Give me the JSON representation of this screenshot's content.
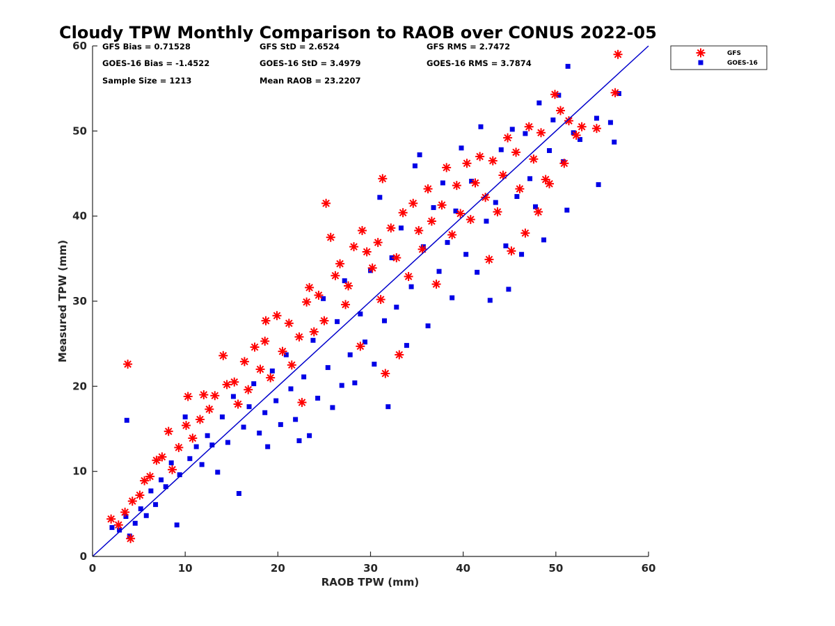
{
  "colors": {
    "gfs": "#ff0000",
    "goes16": "#0000e6",
    "line": "#0000cc",
    "axis": "#262626"
  },
  "chart_data": {
    "type": "scatter",
    "title": "Cloudy TPW Monthly Comparison to RAOB over CONUS 2022-05",
    "xlabel": "RAOB TPW (mm)",
    "ylabel": "Measured TPW (mm)",
    "xlim": [
      0,
      60
    ],
    "ylim": [
      0,
      60
    ],
    "xticks": [
      "0",
      "10",
      "20",
      "30",
      "40",
      "50",
      "60"
    ],
    "yticks": [
      "0",
      "10",
      "20",
      "30",
      "40",
      "50",
      "60"
    ],
    "grid": false,
    "legend_position": "outside-top-right",
    "stats": [
      {
        "id": "gfs-bias",
        "text": "GFS Bias = 0.71528"
      },
      {
        "id": "gfs-std",
        "text": "GFS StD = 2.6524"
      },
      {
        "id": "gfs-rms",
        "text": "GFS RMS = 2.7472"
      },
      {
        "id": "goes-bias",
        "text": "GOES-16 Bias = -1.4522"
      },
      {
        "id": "goes-std",
        "text": "GOES-16 StD = 3.4979"
      },
      {
        "id": "goes-rms",
        "text": "GOES-16 RMS = 3.7874"
      },
      {
        "id": "sample-size",
        "text": "Sample Size = 1213"
      },
      {
        "id": "mean-raob",
        "text": "Mean RAOB = 23.2207"
      }
    ],
    "reference_line": {
      "from": [
        0,
        0
      ],
      "to": [
        60,
        60
      ]
    },
    "series": [
      {
        "name": "GFS",
        "marker": "asterisk",
        "points": [
          [
            2,
            4.4
          ],
          [
            2.8,
            3.7
          ],
          [
            3.5,
            5.2
          ],
          [
            3.8,
            22.6
          ],
          [
            4.1,
            2.1
          ],
          [
            4.3,
            6.5
          ],
          [
            5.1,
            7.2
          ],
          [
            5.6,
            8.9
          ],
          [
            6.2,
            9.4
          ],
          [
            6.9,
            11.3
          ],
          [
            7.5,
            11.7
          ],
          [
            8.2,
            14.7
          ],
          [
            8.6,
            10.2
          ],
          [
            9.3,
            12.8
          ],
          [
            10.1,
            15.4
          ],
          [
            10.3,
            18.8
          ],
          [
            10.8,
            13.9
          ],
          [
            11.6,
            16.1
          ],
          [
            12.0,
            19.0
          ],
          [
            12.6,
            17.3
          ],
          [
            13.2,
            18.9
          ],
          [
            14.1,
            23.6
          ],
          [
            14.5,
            20.2
          ],
          [
            15.3,
            20.5
          ],
          [
            15.7,
            17.9
          ],
          [
            16.4,
            22.9
          ],
          [
            16.8,
            19.6
          ],
          [
            17.5,
            24.6
          ],
          [
            18.1,
            22.0
          ],
          [
            18.6,
            25.3
          ],
          [
            18.7,
            27.7
          ],
          [
            19.2,
            21.0
          ],
          [
            19.9,
            28.3
          ],
          [
            20.5,
            24.1
          ],
          [
            21.2,
            27.4
          ],
          [
            21.5,
            22.5
          ],
          [
            22.3,
            25.8
          ],
          [
            22.6,
            18.1
          ],
          [
            23.1,
            29.9
          ],
          [
            23.4,
            31.6
          ],
          [
            23.9,
            26.4
          ],
          [
            24.4,
            30.7
          ],
          [
            25.0,
            27.7
          ],
          [
            25.2,
            41.5
          ],
          [
            25.7,
            37.5
          ],
          [
            26.2,
            33.0
          ],
          [
            26.7,
            34.4
          ],
          [
            27.3,
            29.6
          ],
          [
            27.6,
            31.8
          ],
          [
            28.2,
            36.4
          ],
          [
            28.9,
            24.7
          ],
          [
            29.1,
            38.3
          ],
          [
            29.6,
            35.8
          ],
          [
            30.2,
            33.9
          ],
          [
            30.8,
            36.9
          ],
          [
            31.1,
            30.2
          ],
          [
            31.3,
            44.4
          ],
          [
            31.6,
            21.5
          ],
          [
            32.2,
            38.6
          ],
          [
            32.8,
            35.1
          ],
          [
            33.1,
            23.7
          ],
          [
            33.5,
            40.4
          ],
          [
            34.1,
            32.9
          ],
          [
            34.6,
            41.5
          ],
          [
            35.2,
            38.3
          ],
          [
            35.6,
            36.1
          ],
          [
            36.2,
            43.2
          ],
          [
            36.6,
            39.4
          ],
          [
            37.1,
            32.0
          ],
          [
            37.7,
            41.3
          ],
          [
            38.2,
            45.7
          ],
          [
            38.8,
            37.8
          ],
          [
            39.3,
            43.6
          ],
          [
            39.7,
            40.3
          ],
          [
            40.4,
            46.2
          ],
          [
            40.8,
            39.6
          ],
          [
            41.3,
            43.9
          ],
          [
            41.8,
            47.0
          ],
          [
            42.4,
            42.2
          ],
          [
            42.8,
            34.9
          ],
          [
            43.2,
            46.5
          ],
          [
            43.7,
            40.5
          ],
          [
            44.3,
            44.8
          ],
          [
            44.8,
            49.2
          ],
          [
            45.2,
            35.9
          ],
          [
            45.7,
            47.5
          ],
          [
            46.1,
            43.2
          ],
          [
            46.7,
            38.0
          ],
          [
            47.1,
            50.5
          ],
          [
            47.6,
            46.7
          ],
          [
            48.1,
            40.5
          ],
          [
            48.4,
            49.8
          ],
          [
            48.9,
            44.3
          ],
          [
            49.3,
            43.8
          ],
          [
            49.9,
            54.3
          ],
          [
            50.5,
            52.4
          ],
          [
            50.9,
            46.2
          ],
          [
            51.4,
            51.2
          ],
          [
            52.2,
            49.5
          ],
          [
            52.8,
            50.5
          ],
          [
            54.4,
            50.3
          ],
          [
            56.4,
            54.5
          ],
          [
            56.7,
            59.0
          ]
        ]
      },
      {
        "name": "GOES-16",
        "marker": "square",
        "points": [
          [
            2.1,
            3.4
          ],
          [
            2.9,
            3.1
          ],
          [
            3.6,
            4.7
          ],
          [
            3.7,
            16.0
          ],
          [
            4.0,
            2.4
          ],
          [
            4.6,
            3.9
          ],
          [
            5.2,
            5.6
          ],
          [
            5.8,
            4.8
          ],
          [
            6.3,
            7.7
          ],
          [
            6.8,
            6.1
          ],
          [
            7.4,
            9.0
          ],
          [
            7.9,
            8.2
          ],
          [
            8.5,
            11.0
          ],
          [
            9.1,
            3.7
          ],
          [
            9.4,
            9.6
          ],
          [
            10.0,
            16.4
          ],
          [
            10.5,
            11.5
          ],
          [
            11.2,
            12.9
          ],
          [
            11.8,
            10.8
          ],
          [
            12.4,
            14.2
          ],
          [
            12.9,
            13.1
          ],
          [
            13.5,
            9.9
          ],
          [
            14.0,
            16.4
          ],
          [
            14.6,
            13.4
          ],
          [
            15.2,
            18.8
          ],
          [
            15.8,
            7.4
          ],
          [
            16.3,
            15.2
          ],
          [
            16.9,
            17.6
          ],
          [
            17.4,
            20.3
          ],
          [
            18.0,
            14.5
          ],
          [
            18.6,
            16.9
          ],
          [
            18.9,
            12.9
          ],
          [
            19.4,
            21.8
          ],
          [
            19.8,
            18.3
          ],
          [
            20.3,
            15.5
          ],
          [
            20.9,
            23.7
          ],
          [
            21.4,
            19.7
          ],
          [
            21.9,
            16.1
          ],
          [
            22.3,
            13.6
          ],
          [
            22.8,
            21.1
          ],
          [
            23.4,
            14.2
          ],
          [
            23.8,
            25.4
          ],
          [
            24.3,
            18.6
          ],
          [
            24.9,
            30.3
          ],
          [
            25.4,
            22.2
          ],
          [
            25.9,
            17.5
          ],
          [
            26.4,
            27.6
          ],
          [
            26.9,
            20.1
          ],
          [
            27.2,
            32.4
          ],
          [
            27.8,
            23.7
          ],
          [
            28.3,
            20.4
          ],
          [
            28.9,
            28.5
          ],
          [
            29.4,
            25.2
          ],
          [
            30.0,
            33.6
          ],
          [
            30.4,
            22.6
          ],
          [
            31.0,
            42.2
          ],
          [
            31.5,
            27.7
          ],
          [
            31.9,
            17.6
          ],
          [
            32.3,
            35.1
          ],
          [
            32.8,
            29.3
          ],
          [
            33.3,
            38.6
          ],
          [
            33.9,
            24.8
          ],
          [
            34.4,
            31.7
          ],
          [
            34.8,
            45.9
          ],
          [
            35.3,
            47.2
          ],
          [
            35.7,
            36.4
          ],
          [
            36.2,
            27.1
          ],
          [
            36.8,
            41.0
          ],
          [
            37.4,
            33.5
          ],
          [
            37.8,
            43.9
          ],
          [
            38.3,
            36.9
          ],
          [
            38.8,
            30.4
          ],
          [
            39.2,
            40.6
          ],
          [
            39.8,
            48.0
          ],
          [
            40.3,
            35.5
          ],
          [
            40.9,
            44.1
          ],
          [
            41.5,
            33.4
          ],
          [
            41.9,
            50.5
          ],
          [
            42.5,
            39.4
          ],
          [
            42.9,
            30.1
          ],
          [
            43.5,
            41.6
          ],
          [
            44.1,
            47.8
          ],
          [
            44.6,
            36.5
          ],
          [
            44.9,
            31.4
          ],
          [
            45.3,
            50.2
          ],
          [
            45.8,
            42.3
          ],
          [
            46.3,
            35.5
          ],
          [
            46.7,
            49.7
          ],
          [
            47.2,
            44.4
          ],
          [
            47.8,
            41.1
          ],
          [
            48.2,
            53.3
          ],
          [
            48.7,
            37.2
          ],
          [
            49.3,
            47.7
          ],
          [
            49.7,
            51.3
          ],
          [
            50.3,
            54.2
          ],
          [
            50.8,
            46.4
          ],
          [
            51.2,
            40.7
          ],
          [
            51.3,
            57.6
          ],
          [
            51.9,
            49.8
          ],
          [
            52.6,
            49.0
          ],
          [
            54.4,
            51.5
          ],
          [
            54.6,
            43.7
          ],
          [
            55.9,
            51.0
          ],
          [
            56.3,
            48.7
          ],
          [
            56.8,
            54.4
          ]
        ]
      }
    ]
  }
}
